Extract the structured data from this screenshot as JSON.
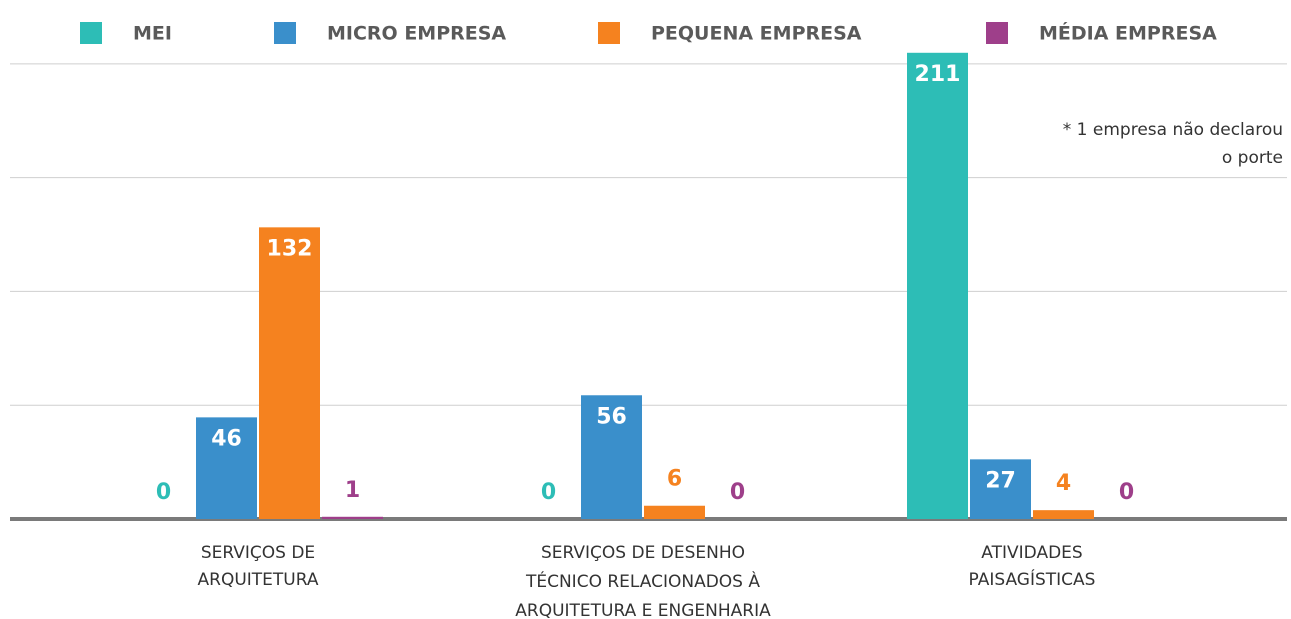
{
  "chart_data": {
    "type": "bar",
    "categories": [
      [
        "SERVIÇOS DE",
        "ARQUITETURA"
      ],
      [
        "SERVIÇOS DE DESENHO",
        "TÉCNICO RELACIONADOS À",
        "ARQUITETURA E ENGENHARIA"
      ],
      [
        "ATIVIDADES",
        "PAISAGÍSTICAS"
      ]
    ],
    "series": [
      {
        "name": "MEI",
        "color": "#2dbdb6",
        "values": [
          0,
          0,
          211
        ]
      },
      {
        "name": "MICRO EMPRESA",
        "color": "#3a8fcb",
        "values": [
          46,
          56,
          27
        ]
      },
      {
        "name": "PEQUENA EMPRESA",
        "color": "#f5821f",
        "values": [
          132,
          6,
          4
        ]
      },
      {
        "name": "MÉDIA EMPRESA",
        "color": "#9e3f8a",
        "values": [
          1,
          0,
          0
        ]
      }
    ],
    "annotation": [
      "* 1 empresa não declarou",
      "o porte"
    ],
    "ylim": [
      0,
      210
    ],
    "yticks": [
      0,
      51.5,
      103,
      154.5,
      206
    ],
    "grid": true
  }
}
